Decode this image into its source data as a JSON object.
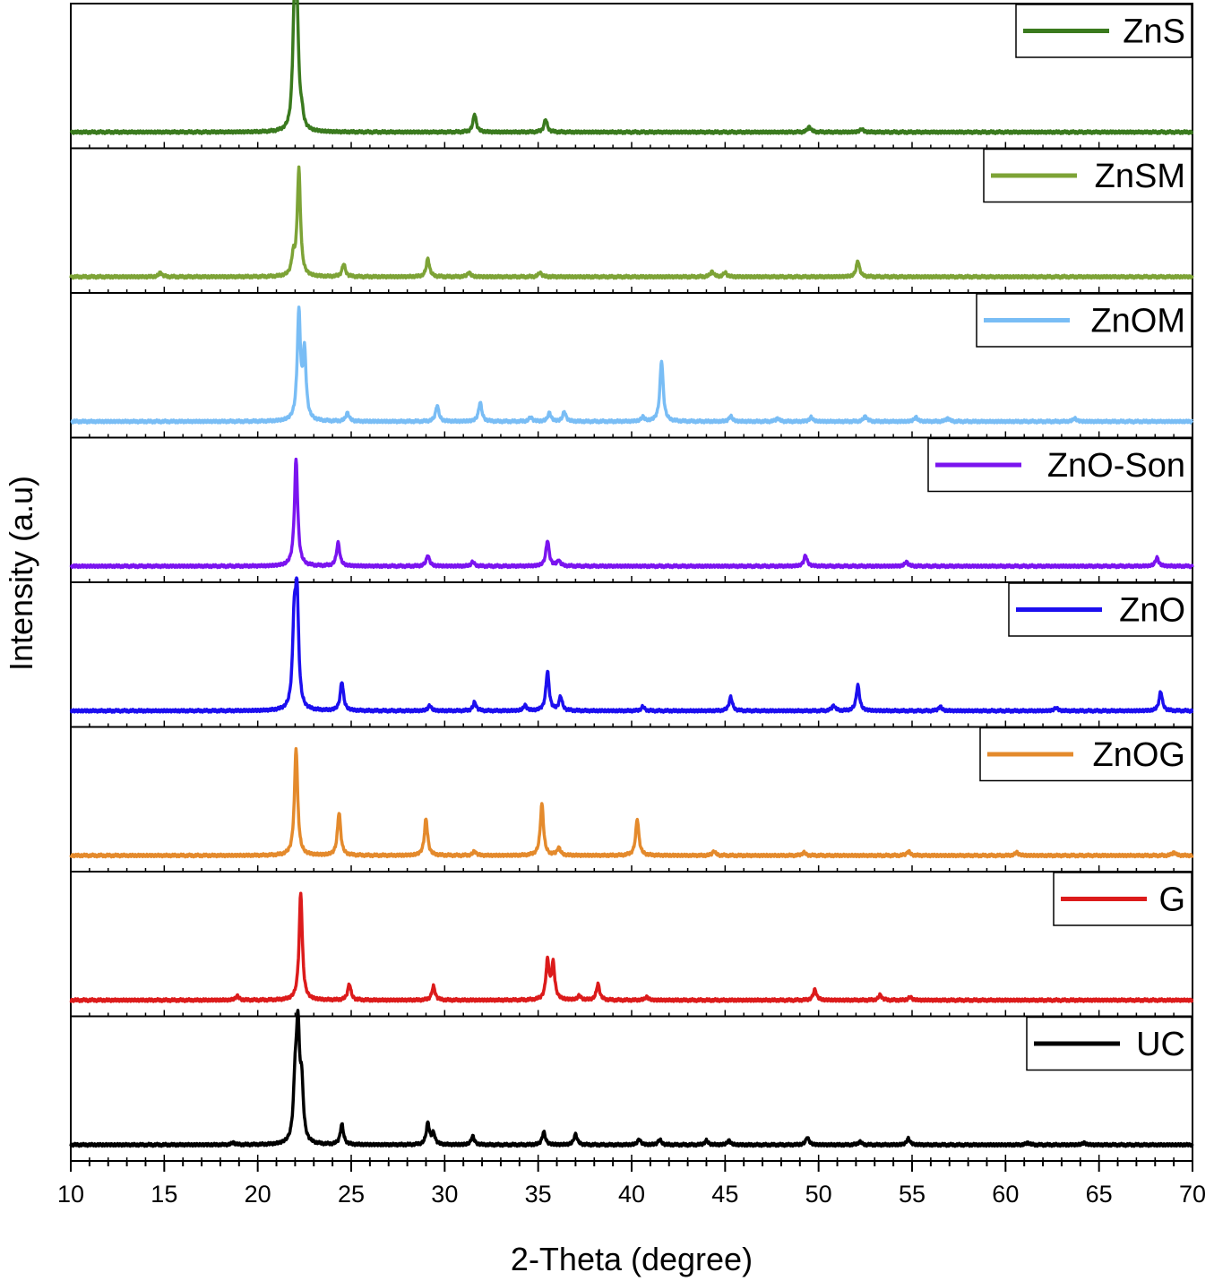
{
  "chart_data": {
    "type": "line",
    "layout": "stacked-panels",
    "xlabel": "2-Theta (degree)",
    "ylabel": "Intensity (a.u)",
    "xlim": [
      10,
      70
    ],
    "xticks": [
      10,
      15,
      20,
      25,
      30,
      35,
      40,
      45,
      50,
      55,
      60,
      65,
      70
    ],
    "grid": false,
    "legend_position": "top-right of each panel",
    "series": [
      {
        "name": "ZnS",
        "color": "#3a7a1e",
        "peaks": [
          [
            21.95,
            0.95
          ],
          [
            22.1,
            1.0
          ],
          [
            22.35,
            0.12
          ],
          [
            31.6,
            0.17
          ],
          [
            35.4,
            0.12
          ],
          [
            49.5,
            0.05
          ],
          [
            52.3,
            0.03
          ]
        ]
      },
      {
        "name": "ZnSM",
        "color": "#7da336",
        "peaks": [
          [
            14.8,
            0.04
          ],
          [
            21.9,
            0.17
          ],
          [
            22.2,
            1.0
          ],
          [
            24.6,
            0.12
          ],
          [
            29.1,
            0.17
          ],
          [
            31.3,
            0.04
          ],
          [
            35.1,
            0.04
          ],
          [
            44.3,
            0.05
          ],
          [
            45.0,
            0.04
          ],
          [
            52.1,
            0.15
          ]
        ]
      },
      {
        "name": "ZnOM",
        "color": "#79bdf5",
        "peaks": [
          [
            22.2,
            1.0
          ],
          [
            22.5,
            0.62
          ],
          [
            24.8,
            0.08
          ],
          [
            29.6,
            0.15
          ],
          [
            31.9,
            0.18
          ],
          [
            34.6,
            0.04
          ],
          [
            35.6,
            0.08
          ],
          [
            36.4,
            0.09
          ],
          [
            40.6,
            0.04
          ],
          [
            41.6,
            0.57
          ],
          [
            45.3,
            0.05
          ],
          [
            47.8,
            0.03
          ],
          [
            49.6,
            0.04
          ],
          [
            52.5,
            0.05
          ],
          [
            55.2,
            0.04
          ],
          [
            56.9,
            0.03
          ],
          [
            63.7,
            0.03
          ]
        ]
      },
      {
        "name": "ZnO-Son",
        "color": "#7a14ef",
        "peaks": [
          [
            22.05,
            1.0
          ],
          [
            24.3,
            0.22
          ],
          [
            29.1,
            0.1
          ],
          [
            31.5,
            0.04
          ],
          [
            35.5,
            0.24
          ],
          [
            36.1,
            0.05
          ],
          [
            49.3,
            0.1
          ],
          [
            54.7,
            0.04
          ],
          [
            68.1,
            0.08
          ]
        ]
      },
      {
        "name": "ZnO",
        "color": "#1c0fef",
        "peaks": [
          [
            21.95,
            0.75
          ],
          [
            22.1,
            1.0
          ],
          [
            24.5,
            0.27
          ],
          [
            29.2,
            0.05
          ],
          [
            31.6,
            0.08
          ],
          [
            34.3,
            0.05
          ],
          [
            35.5,
            0.37
          ],
          [
            36.2,
            0.13
          ],
          [
            40.6,
            0.04
          ],
          [
            45.3,
            0.13
          ],
          [
            50.8,
            0.05
          ],
          [
            52.1,
            0.24
          ],
          [
            56.5,
            0.04
          ],
          [
            62.7,
            0.03
          ],
          [
            68.3,
            0.18
          ]
        ]
      },
      {
        "name": "ZnOG",
        "color": "#e48a2c",
        "peaks": [
          [
            22.05,
            1.0
          ],
          [
            24.35,
            0.4
          ],
          [
            29.0,
            0.34
          ],
          [
            31.6,
            0.04
          ],
          [
            35.2,
            0.48
          ],
          [
            36.1,
            0.07
          ],
          [
            40.3,
            0.34
          ],
          [
            44.4,
            0.04
          ],
          [
            49.2,
            0.03
          ],
          [
            54.8,
            0.04
          ],
          [
            60.6,
            0.03
          ],
          [
            69.0,
            0.03
          ]
        ]
      },
      {
        "name": "G",
        "color": "#dc1b1b",
        "peaks": [
          [
            18.9,
            0.04
          ],
          [
            22.3,
            1.0
          ],
          [
            24.9,
            0.15
          ],
          [
            29.4,
            0.13
          ],
          [
            35.5,
            0.36
          ],
          [
            35.8,
            0.33
          ],
          [
            37.2,
            0.04
          ],
          [
            38.2,
            0.15
          ],
          [
            40.8,
            0.03
          ],
          [
            49.8,
            0.1
          ],
          [
            53.3,
            0.05
          ],
          [
            54.9,
            0.03
          ]
        ]
      },
      {
        "name": "UC",
        "color": "#000000",
        "peaks": [
          [
            18.7,
            0.02
          ],
          [
            22.0,
            0.5
          ],
          [
            22.15,
            1.0
          ],
          [
            22.35,
            0.5
          ],
          [
            24.5,
            0.19
          ],
          [
            29.1,
            0.2
          ],
          [
            29.4,
            0.1
          ],
          [
            31.5,
            0.08
          ],
          [
            35.3,
            0.12
          ],
          [
            37.0,
            0.1
          ],
          [
            40.4,
            0.05
          ],
          [
            41.5,
            0.05
          ],
          [
            44.0,
            0.04
          ],
          [
            45.2,
            0.04
          ],
          [
            49.4,
            0.07
          ],
          [
            52.2,
            0.03
          ],
          [
            54.8,
            0.06
          ],
          [
            61.2,
            0.02
          ],
          [
            64.2,
            0.02
          ]
        ]
      }
    ]
  }
}
